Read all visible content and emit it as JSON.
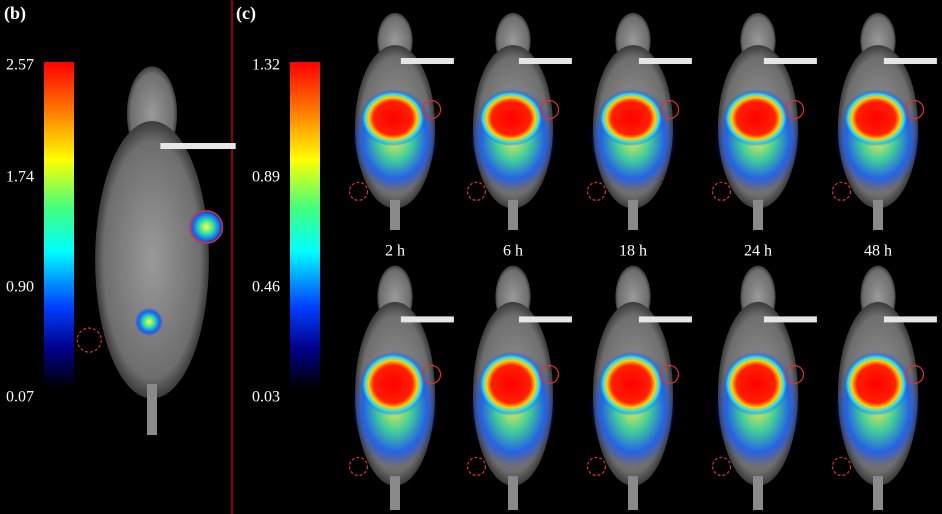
{
  "panels": [
    {
      "label": "(b)",
      "colorbar": {
        "ticks": [
          "2.57",
          "1.74",
          "0.90",
          "0.07"
        ]
      }
    },
    {
      "label": "(c)",
      "colorbar": {
        "ticks": [
          "1.32",
          "0.89",
          "0.46",
          "0.03"
        ]
      },
      "time_labels": [
        "2 h",
        "6 h",
        "18 h",
        "24 h",
        "48 h"
      ]
    }
  ]
}
